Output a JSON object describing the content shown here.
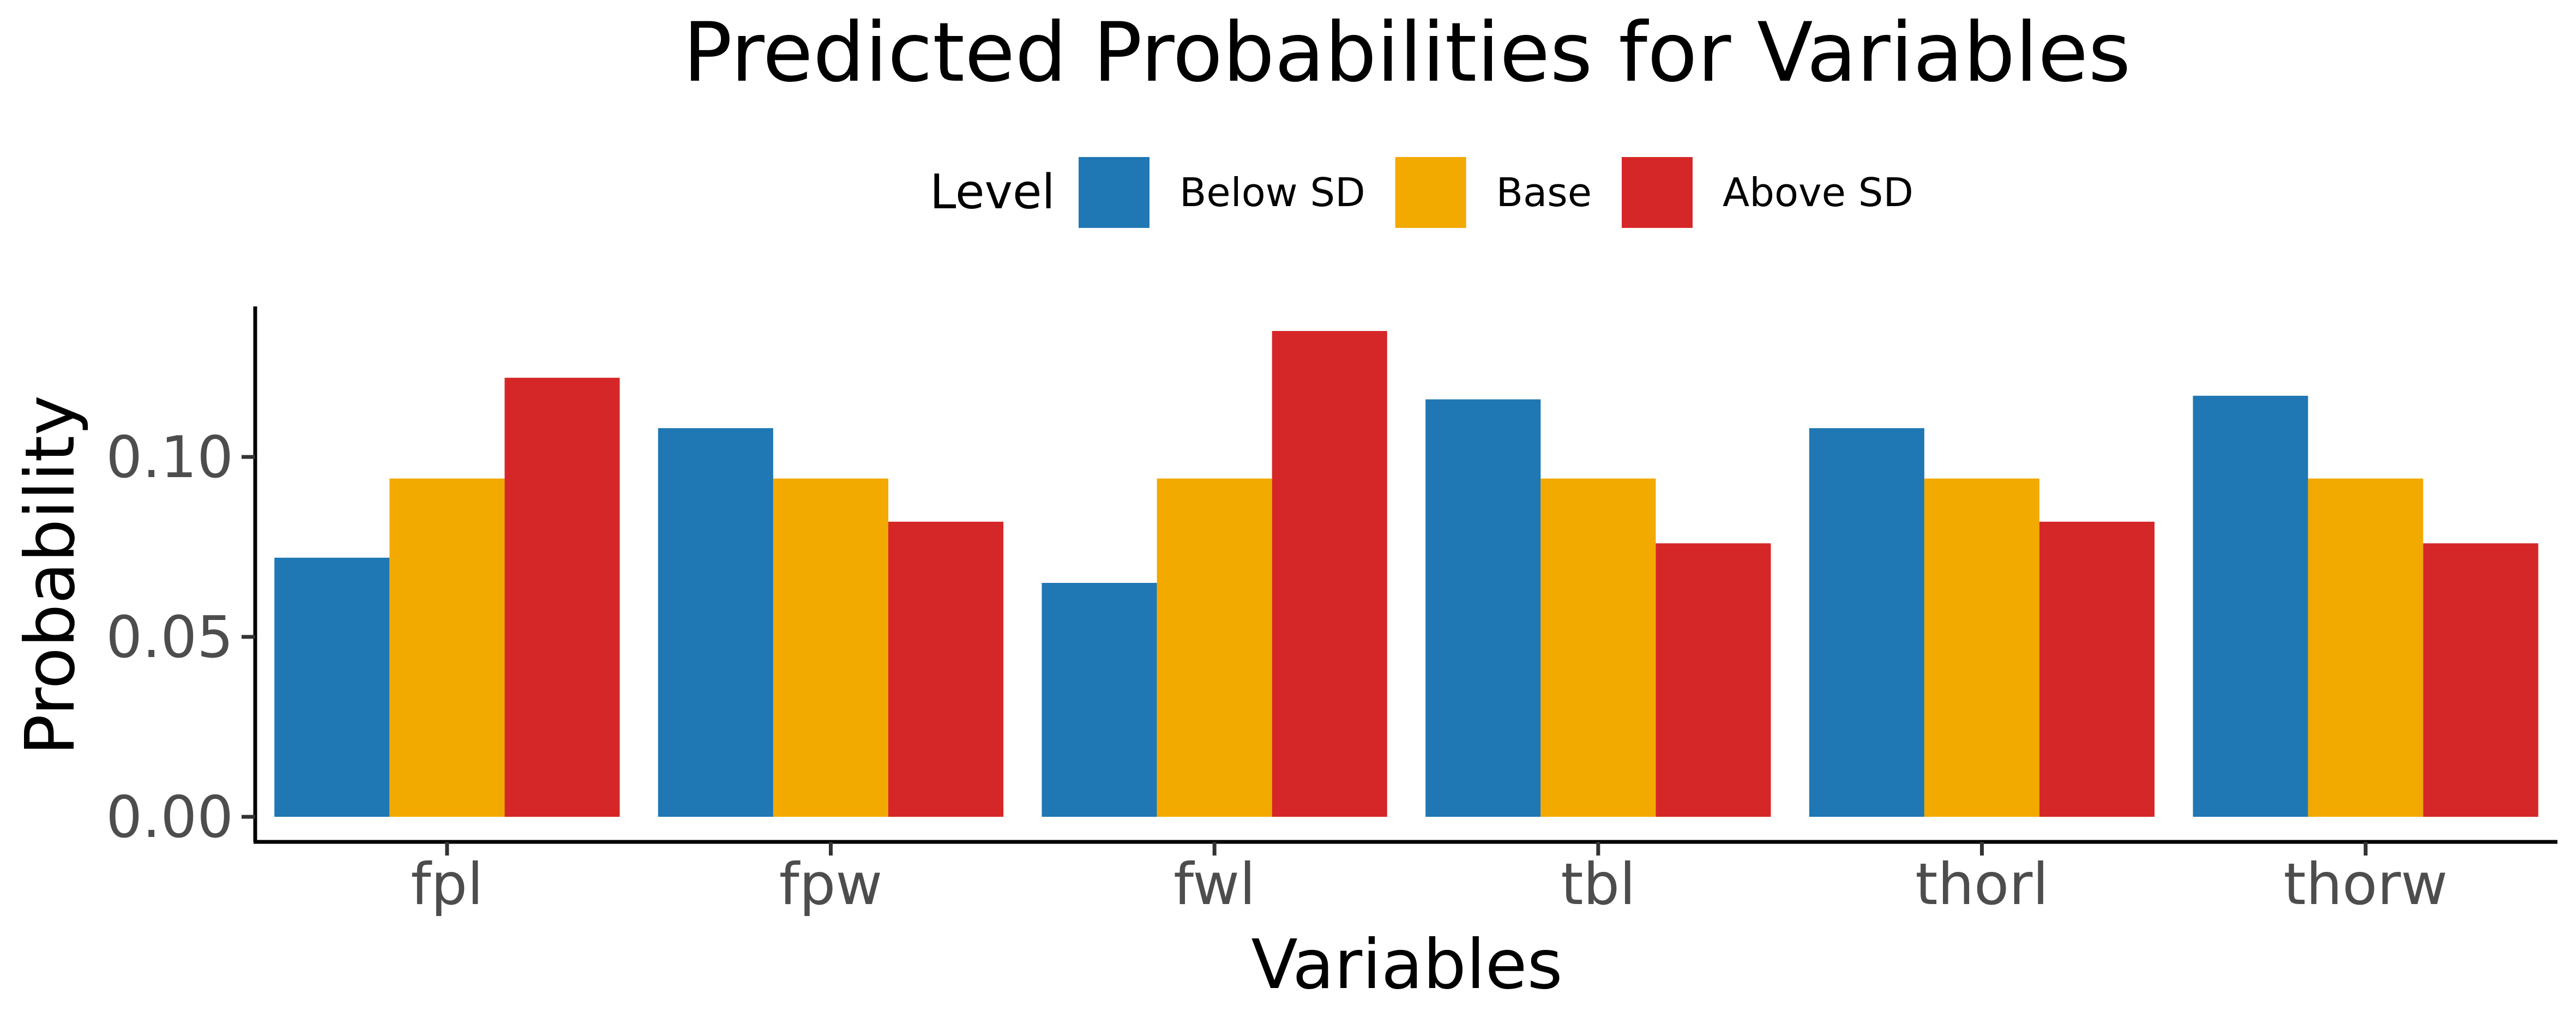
{
  "chart_data": {
    "type": "bar",
    "title": "Predicted Probabilities for Variables",
    "xlabel": "Variables",
    "ylabel": "Probability",
    "categories": [
      "fpl",
      "fpw",
      "fwl",
      "tbl",
      "thorl",
      "thorw"
    ],
    "legend": {
      "title": "Level",
      "position": "top"
    },
    "series": [
      {
        "name": "Below SD",
        "color": "#1F77B4",
        "values": [
          0.072,
          0.108,
          0.065,
          0.116,
          0.108,
          0.117
        ]
      },
      {
        "name": "Base",
        "color": "#F2A900",
        "values": [
          0.094,
          0.094,
          0.094,
          0.094,
          0.094,
          0.094
        ]
      },
      {
        "name": "Above SD",
        "color": "#D62728",
        "values": [
          0.122,
          0.082,
          0.135,
          0.076,
          0.082,
          0.076
        ]
      }
    ],
    "ylim": [
      0,
      0.14
    ],
    "yticks": [
      0.0,
      0.05,
      0.1
    ],
    "ytick_labels": [
      "0.00",
      "0.05",
      "0.10"
    ],
    "grid": false
  }
}
